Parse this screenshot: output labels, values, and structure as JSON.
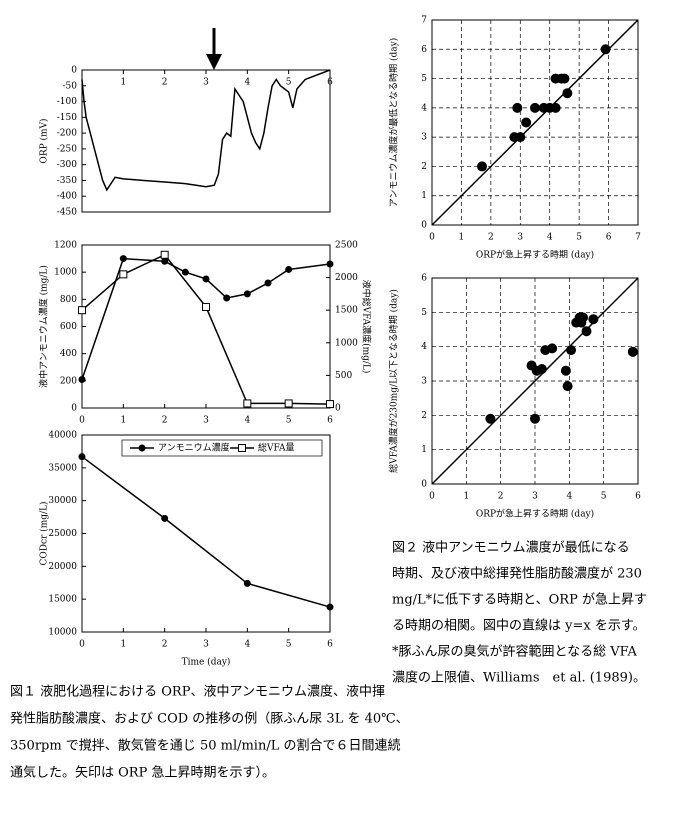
{
  "chart_data": [
    {
      "type": "line",
      "ylabel": "ORP (mV)",
      "xlim": [
        0,
        6
      ],
      "xticks": [
        1,
        2,
        3,
        4,
        5,
        6
      ],
      "ylim": [
        -450,
        0
      ],
      "yticks": [
        0,
        -50,
        -100,
        -150,
        -200,
        -250,
        -300,
        -350,
        -400,
        -450
      ],
      "series": [
        {
          "color": "#000000",
          "marker": "none",
          "x": [
            0,
            0.05,
            0.1,
            0.2,
            0.3,
            0.4,
            0.5,
            0.6,
            0.7,
            0.8,
            1.0,
            1.5,
            2.0,
            2.5,
            3.0,
            3.2,
            3.3,
            3.4,
            3.5,
            3.6,
            3.7,
            3.8,
            3.9,
            4.0,
            4.1,
            4.2,
            4.3,
            4.4,
            4.5,
            4.6,
            4.7,
            4.8,
            5.0,
            5.1,
            5.2,
            5.4,
            5.6,
            6.0
          ],
          "values": [
            -30,
            -100,
            -150,
            -200,
            -250,
            -300,
            -350,
            -380,
            -360,
            -340,
            -345,
            -350,
            -355,
            -360,
            -370,
            -365,
            -330,
            -220,
            -200,
            -210,
            -60,
            -80,
            -100,
            -150,
            -200,
            -230,
            -250,
            -200,
            -120,
            -50,
            -30,
            -50,
            -70,
            -120,
            -60,
            -30,
            -20,
            0
          ]
        }
      ]
    },
    {
      "type": "line",
      "ylabel": "液中アンモニウム濃度 (mg/L)",
      "y2label": "液中総VFA濃度(mg/L)",
      "xlim": [
        0,
        6
      ],
      "xticks": [
        0,
        1,
        2,
        3,
        4,
        5,
        6
      ],
      "ylim": [
        0,
        1200
      ],
      "yticks": [
        0,
        200,
        400,
        600,
        800,
        1000,
        1200
      ],
      "y2lim": [
        0,
        2500
      ],
      "y2ticks": [
        0,
        500,
        1000,
        1500,
        2000,
        2500
      ],
      "series": [
        {
          "name": "アンモニウム濃度",
          "color": "#000000",
          "marker": "circle",
          "x": [
            0,
            1,
            2,
            2.5,
            3,
            3.5,
            4,
            4.5,
            5,
            6
          ],
          "values": [
            210,
            1100,
            1080,
            1000,
            950,
            810,
            840,
            920,
            1020,
            1060
          ]
        },
        {
          "name": "総VFA量",
          "color": "#000000",
          "marker": "square",
          "axis": "y2",
          "x": [
            0,
            1,
            2,
            3,
            4,
            5,
            6
          ],
          "values": [
            1500,
            2050,
            2350,
            1550,
            70,
            70,
            60
          ]
        }
      ]
    },
    {
      "type": "line",
      "xlabel": "Time (day)",
      "ylabel": "CODcr (mg/L)",
      "xlim": [
        0,
        6
      ],
      "xticks": [
        0,
        1,
        2,
        3,
        4,
        5,
        6
      ],
      "ylim": [
        10000,
        40000
      ],
      "yticks": [
        10000,
        15000,
        20000,
        25000,
        30000,
        35000,
        40000
      ],
      "series": [
        {
          "color": "#000000",
          "marker": "circle",
          "x": [
            0,
            2,
            4,
            6
          ],
          "values": [
            36700,
            27300,
            17400,
            13800
          ]
        }
      ]
    },
    {
      "type": "scatter",
      "xlabel": "ORPが急上昇する時期 (day)",
      "ylabel": "アンモニウム濃度が最低となる時期 (day)",
      "xlim": [
        0,
        7
      ],
      "xticks": [
        0,
        1,
        2,
        3,
        4,
        5,
        6,
        7
      ],
      "ylim": [
        0,
        7
      ],
      "yticks": [
        0,
        1,
        2,
        3,
        4,
        5,
        6,
        7
      ],
      "grid": true,
      "diagonal": true,
      "series": [
        {
          "color": "#000000",
          "x": [
            1.7,
            2.8,
            2.9,
            3,
            3.2,
            3.5,
            3.8,
            4,
            4.2,
            4.2,
            4.4,
            4.5,
            4.6,
            5.9
          ],
          "values": [
            2,
            3,
            4,
            3,
            3.5,
            4,
            4,
            4,
            4,
            5,
            5,
            5,
            4.5,
            6
          ]
        }
      ]
    },
    {
      "type": "scatter",
      "xlabel": "ORPが急上昇する時期 (day)",
      "ylabel": "総VFA濃度が230mg/L以下となる時期 (day)",
      "xlim": [
        0,
        6
      ],
      "xticks": [
        0,
        1,
        2,
        3,
        4,
        5,
        6
      ],
      "ylim": [
        0,
        6
      ],
      "yticks": [
        0,
        1,
        2,
        3,
        4,
        5,
        6
      ],
      "grid": true,
      "diagonal": true,
      "series": [
        {
          "color": "#000000",
          "x": [
            1.7,
            2.9,
            3.0,
            3.05,
            3.2,
            3.3,
            3.5,
            3.9,
            3.95,
            4.05,
            4.2,
            4.3,
            4.35,
            4.4,
            4.5,
            4.7,
            5.85
          ],
          "values": [
            1.9,
            3.45,
            1.9,
            3.3,
            3.35,
            3.9,
            3.95,
            3.3,
            2.85,
            3.9,
            4.7,
            4.85,
            4.7,
            4.85,
            4.45,
            4.8,
            3.85
          ]
        }
      ]
    }
  ],
  "fig2_caption": [
    "図２ 液中アンモニウム濃度が最低になる",
    "時期、及び液中総揮発性脂肪酸濃度が 230",
    "mg/L*に低下する時期と、ORP が急上昇す",
    "る時期の相関。図中の直線は y=x を示す。",
    "*豚ふん尿の臭気が許容範囲となる総 VFA",
    "濃度の上限値、Williams　et al. (1989)。"
  ],
  "fig1_caption": [
    "図１ 液肥化過程における ORP、液中アンモニウム濃度、液中揮",
    "発性脂肪酸濃度、および COD の推移の例（豚ふん尿 3L を 40℃、",
    "350rpm で撹拌、散気管を通じ 50 ml/min/L の割合で６日間連続",
    "通気した。矢印は ORP 急上昇時期を示す）。"
  ]
}
